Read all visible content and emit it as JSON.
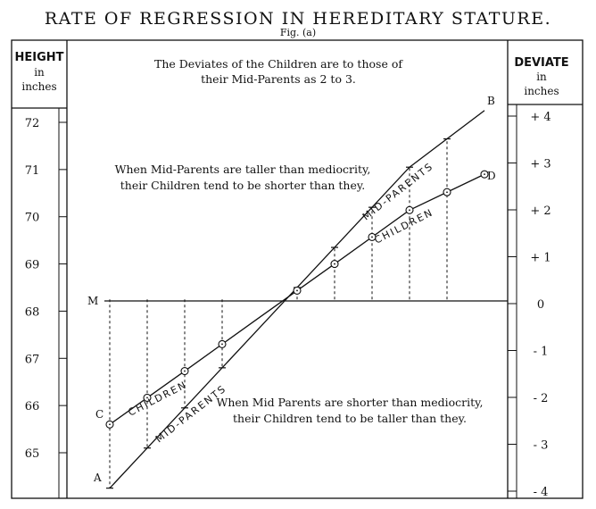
{
  "title": "RATE OF REGRESSION IN HEREDITARY STATURE.",
  "subtitle": "Fig. (a)",
  "left_header": {
    "line1": "HEIGHT",
    "line2": "in",
    "line3": "inches"
  },
  "right_header": {
    "line1": "DEVIATE",
    "line2": "in",
    "line3": "inches"
  },
  "annotations": {
    "top_line1": "The Deviates of the Children are to those of",
    "top_line2": "their Mid-Parents as 2 to 3.",
    "taller_line1": "When Mid-Parents are taller than mediocrity,",
    "taller_line2": "their Children tend to be shorter than they.",
    "shorter_line1": "When Mid Parents are shorter than mediocrity,",
    "shorter_line2": "their Children tend to be taller than they."
  },
  "point_labels": {
    "A": "A",
    "B": "B",
    "C": "C",
    "D": "D",
    "M": "M"
  },
  "line_labels": {
    "mid_parents_upper": "MID-PARENTS",
    "children_upper": "CHILDREN",
    "children_lower": "CHILDREN",
    "mid_parents_lower": "MID-PARENTS"
  },
  "chart_data": {
    "type": "line",
    "title": "RATE OF REGRESSION IN HEREDITARY STATURE.",
    "ylabel_left": "HEIGHT in inches",
    "ylabel_right": "DEVIATE in inches",
    "left_ticks": [
      "72",
      "71",
      "70",
      "69",
      "68",
      "67",
      "66",
      "65"
    ],
    "right_ticks": [
      "+ 4",
      "+ 3",
      "+ 2",
      "+ 1",
      "0",
      "- 1",
      "- 2",
      "- 3",
      "- 4"
    ],
    "ylim": [
      64.2,
      72.3
    ],
    "mediocrity": 68.25,
    "series": [
      {
        "name": "MID-PARENTS",
        "x": [
          0,
          20,
          40,
          60,
          80,
          100
        ],
        "values": [
          64.25,
          65.95,
          67.65,
          69.35,
          71.05,
          72.25
        ]
      },
      {
        "name": "CHILDREN",
        "x": [
          0,
          20,
          40,
          60,
          80,
          100
        ],
        "values": [
          65.6,
          66.73,
          67.87,
          69.0,
          70.14,
          70.9
        ]
      }
    ],
    "vertical_deviation_x": [
      0,
      10,
      20,
      30,
      50,
      60,
      70,
      80,
      90
    ],
    "grid": false
  }
}
